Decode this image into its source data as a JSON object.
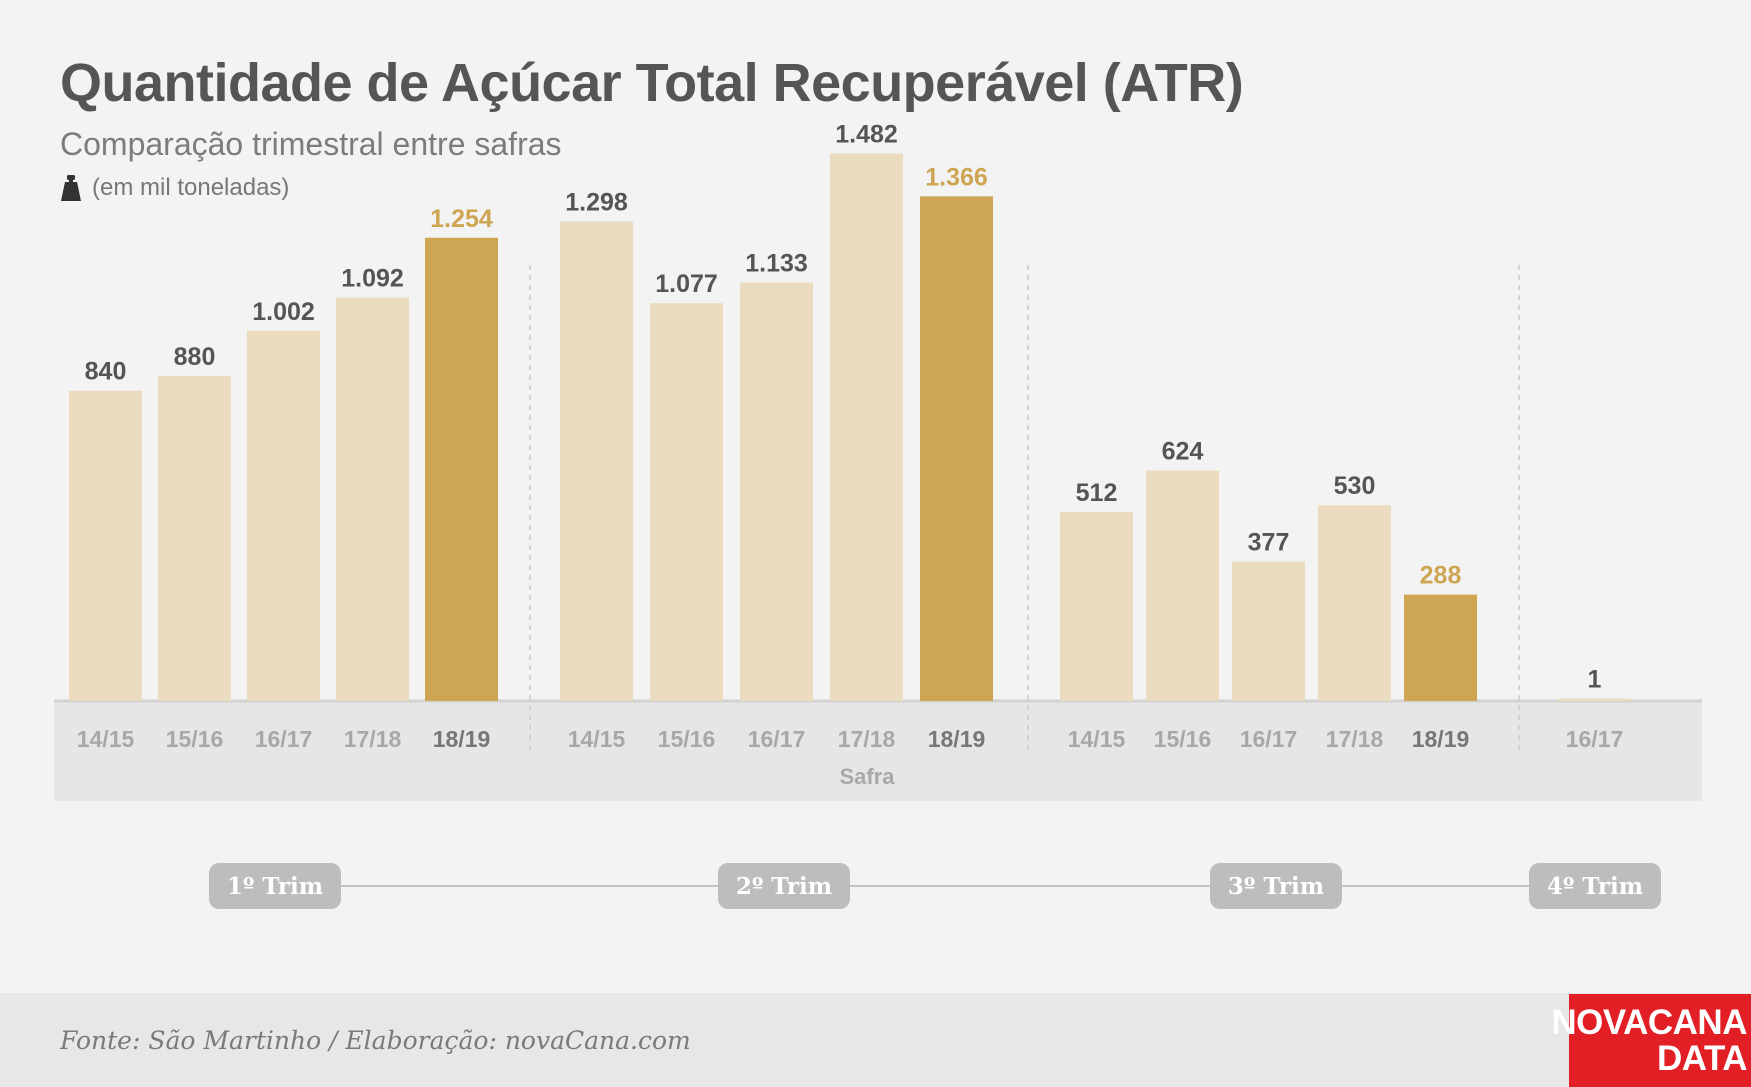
{
  "header": {
    "title": "Quantidade de Açúcar Total Recuperável (ATR)",
    "subtitle": "Comparação trimestral entre safras",
    "unit_icon": "weight-icon",
    "unit_label": "(em mil toneladas)"
  },
  "chart_data": {
    "type": "bar",
    "xlabel": "Safra",
    "ylabel": "",
    "ylim": [
      0,
      1500
    ],
    "grid": false,
    "colors": {
      "past": "#ebdcbf",
      "current": "#cea553",
      "current_label": "#cea553",
      "value_label": "#555555"
    },
    "groups": [
      {
        "label": "1º Trim",
        "categories": [
          "14/15",
          "15/16",
          "16/17",
          "17/18",
          "18/19"
        ],
        "values": [
          840,
          880,
          1002,
          1092,
          1254
        ],
        "value_labels": [
          "840",
          "880",
          "1.002",
          "1.092",
          "1.254"
        ],
        "highlight": "18/19"
      },
      {
        "label": "2º Trim",
        "categories": [
          "14/15",
          "15/16",
          "16/17",
          "17/18",
          "18/19"
        ],
        "values": [
          1298,
          1077,
          1133,
          1482,
          1366
        ],
        "value_labels": [
          "1.298",
          "1.077",
          "1.133",
          "1.482",
          "1.366"
        ],
        "highlight": "18/19"
      },
      {
        "label": "3º Trim",
        "categories": [
          "14/15",
          "15/16",
          "16/17",
          "17/18",
          "18/19"
        ],
        "values": [
          512,
          624,
          377,
          530,
          288
        ],
        "value_labels": [
          "512",
          "624",
          "377",
          "530",
          "288"
        ],
        "highlight": "18/19"
      },
      {
        "label": "4º Trim",
        "categories": [
          "16/17"
        ],
        "values": [
          1
        ],
        "value_labels": [
          "1"
        ],
        "highlight": ""
      }
    ]
  },
  "footer": {
    "source": "Fonte: São Martinho / Elaboração: novaCana.com",
    "brand_line1": "NOVACANA",
    "brand_line2": "DATA"
  }
}
